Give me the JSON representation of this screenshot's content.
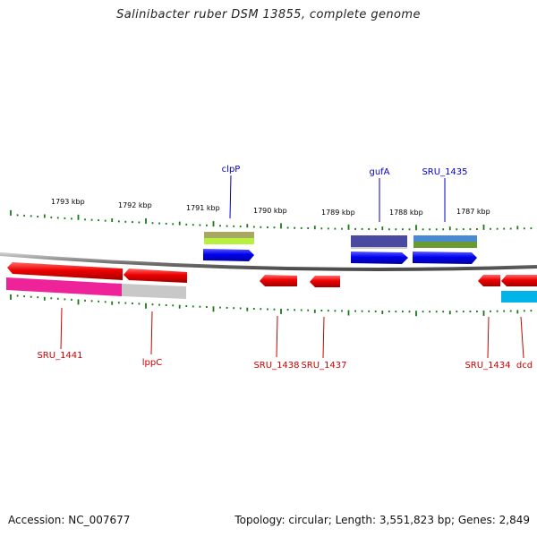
{
  "title": "Salinibacter ruber DSM 13855, complete genome",
  "footer": {
    "accession": "Accession: NC_007677",
    "summary": "Topology: circular; Length: 3,551,823 bp; Genes: 2,849"
  },
  "ruler_labels": [
    "1793 kbp",
    "1792 kbp",
    "1791 kbp",
    "1790 kbp",
    "1789 kbp",
    "1788 kbp",
    "1787 kbp"
  ],
  "genes_forward": [
    {
      "label": "clpP",
      "color": "#0000cc"
    },
    {
      "label": "gufA",
      "color": "#0000cc"
    },
    {
      "label": "SRU_1435",
      "color": "#0000cc"
    }
  ],
  "genes_reverse": [
    {
      "label": "SRU_1441",
      "color": "#cc0000"
    },
    {
      "label": "lppC",
      "color": "#cc0000"
    },
    {
      "label": "SRU_1438",
      "color": "#cc0000"
    },
    {
      "label": "SRU_1437",
      "color": "#cc0000"
    },
    {
      "label": "SRU_1434",
      "color": "#cc0000"
    },
    {
      "label": "dcd",
      "color": "#cc0000"
    }
  ]
}
